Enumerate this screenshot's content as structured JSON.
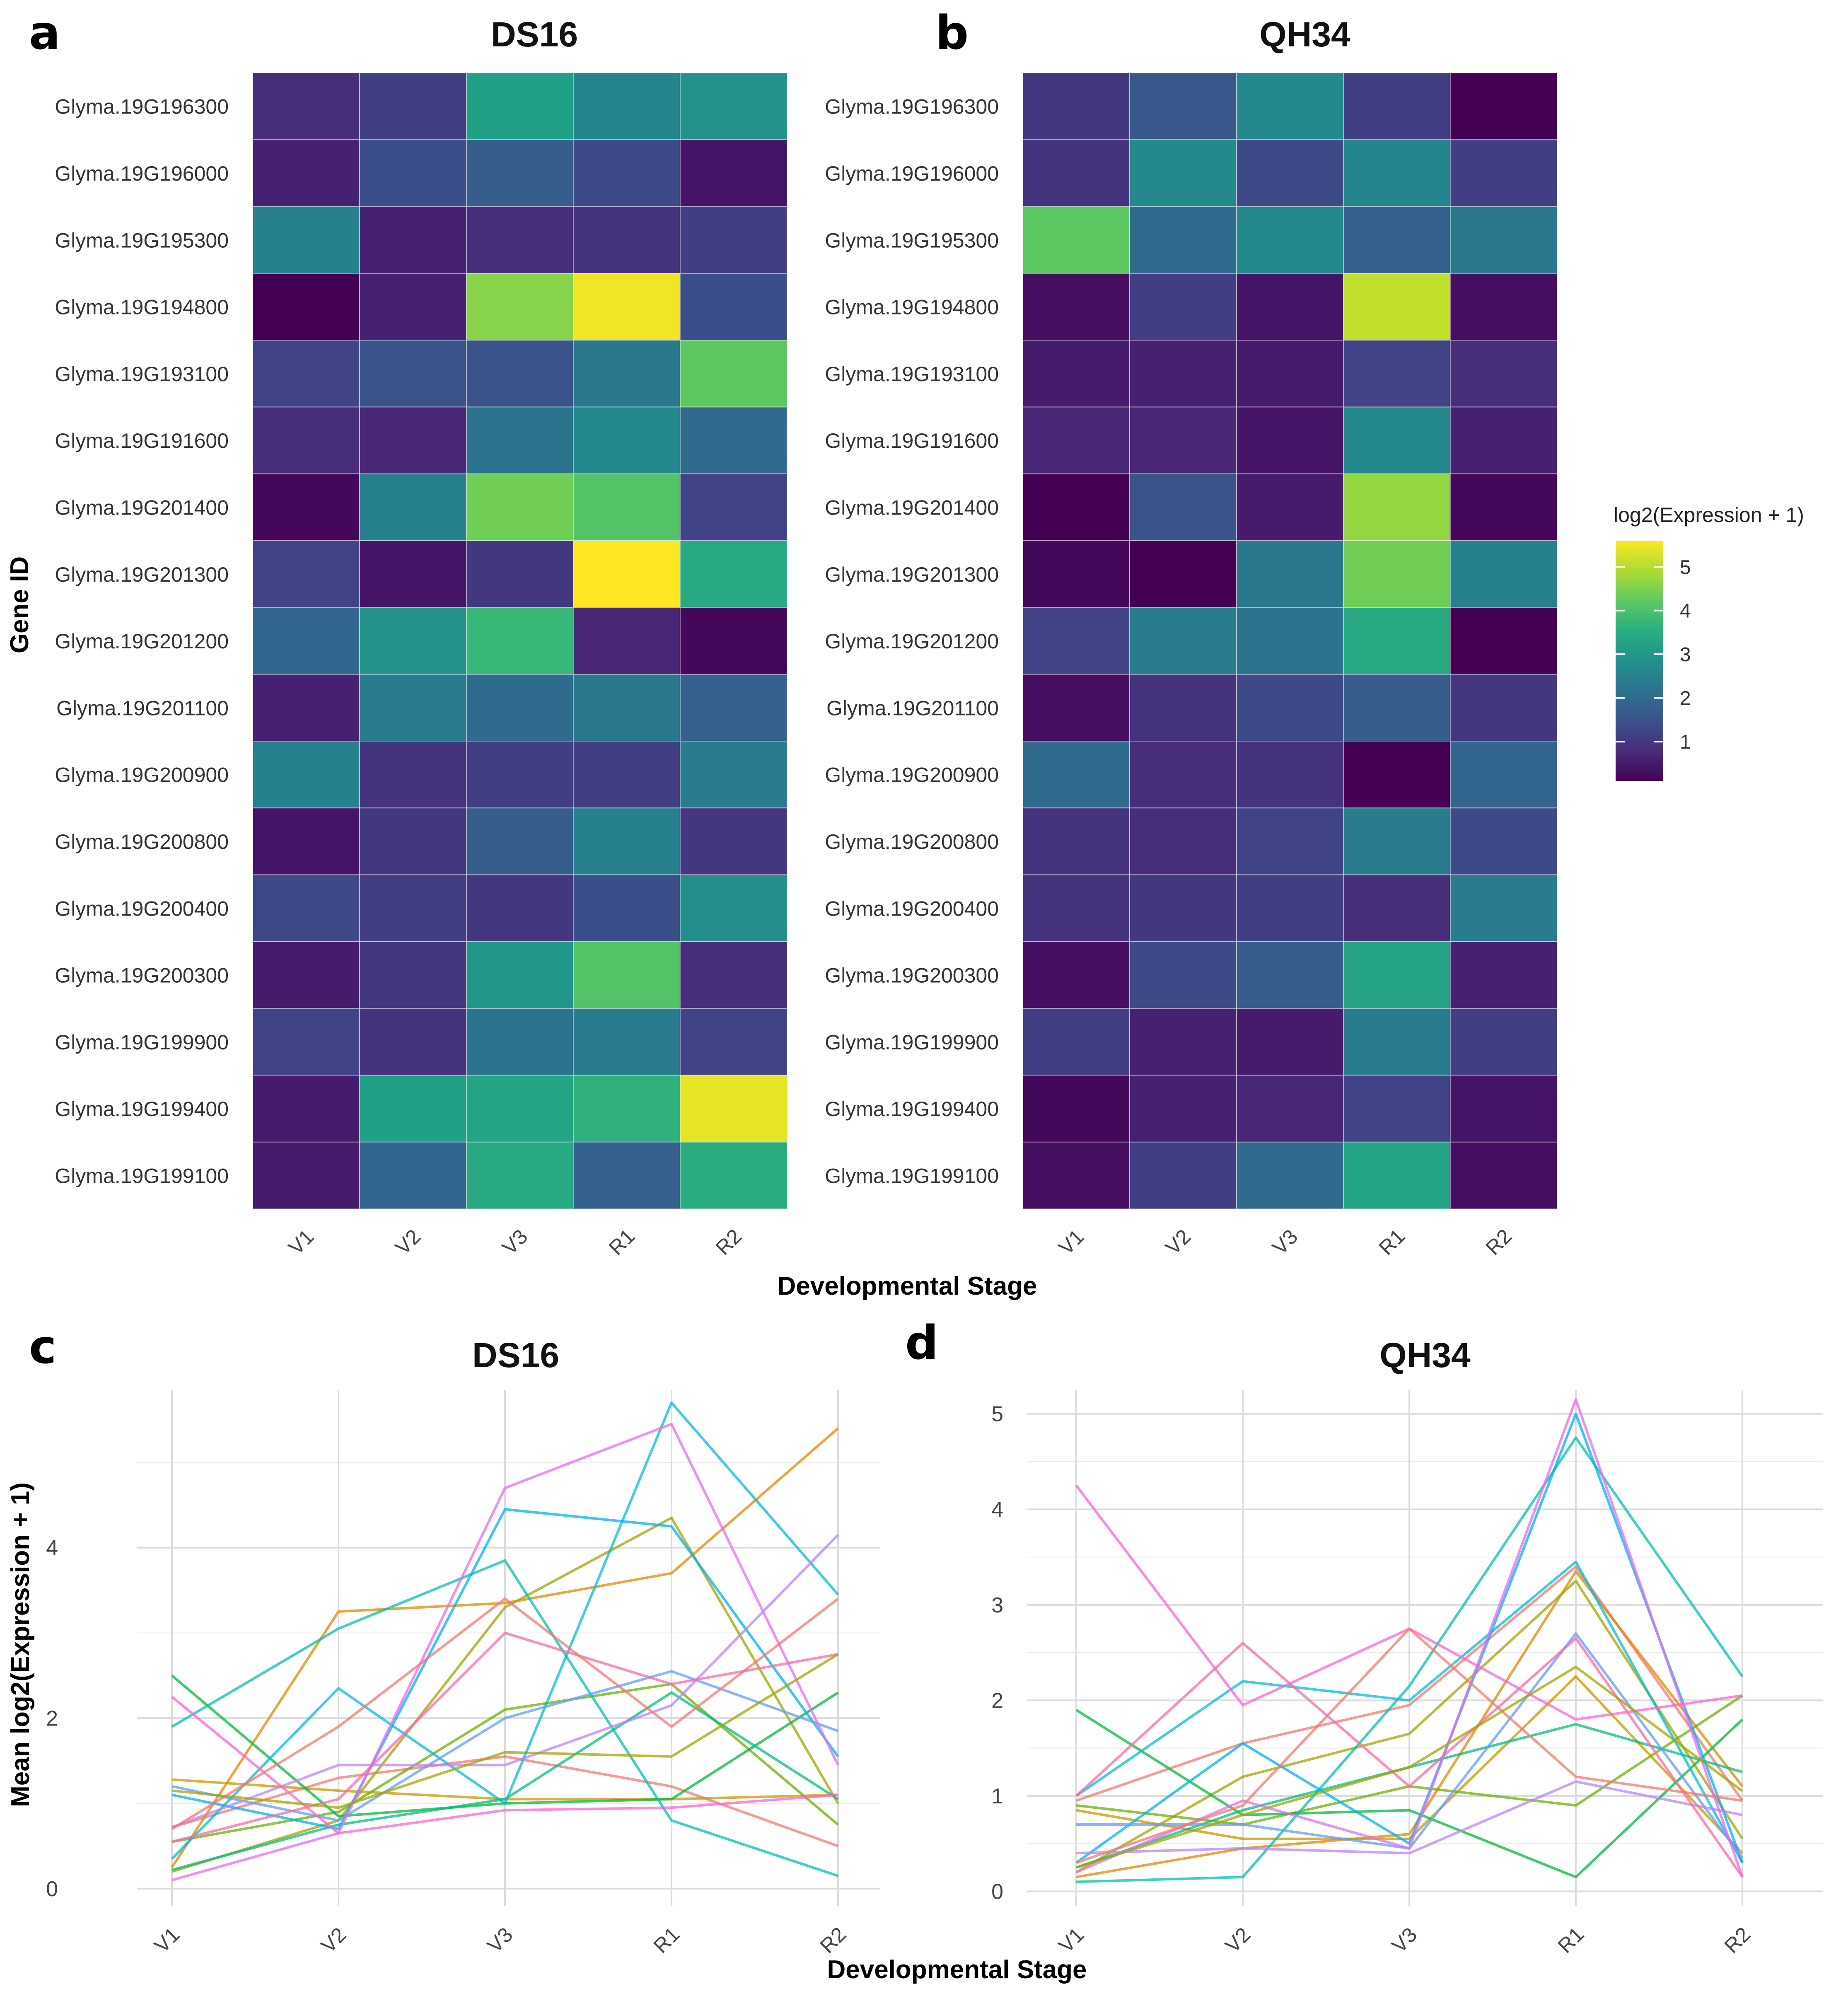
{
  "figure": {
    "panel_letters": [
      "a",
      "b",
      "c",
      "d"
    ],
    "legend_title": "log2(Expression + 1)",
    "legend_ticks": [
      1,
      2,
      3,
      4,
      5
    ]
  },
  "chart_data": [
    {
      "id": "a",
      "type": "heatmap",
      "title": "DS16",
      "xlabel": "",
      "ylabel": "Gene ID",
      "x_categories": [
        "V1",
        "V2",
        "V3",
        "R1",
        "R2"
      ],
      "y_categories": [
        "Glyma.19G196300",
        "Glyma.19G196000",
        "Glyma.19G195300",
        "Glyma.19G194800",
        "Glyma.19G193100",
        "Glyma.19G191600",
        "Glyma.19G201400",
        "Glyma.19G201300",
        "Glyma.19G201200",
        "Glyma.19G201100",
        "Glyma.19G200900",
        "Glyma.19G200800",
        "Glyma.19G200400",
        "Glyma.19G200300",
        "Glyma.19G199900",
        "Glyma.19G199400",
        "Glyma.19G199100"
      ],
      "color_scale": {
        "name": "viridis",
        "min": 0.1,
        "max": 5.6
      },
      "values": [
        [
          0.8,
          1.1,
          3.2,
          2.6,
          2.9
        ],
        [
          0.6,
          1.4,
          1.7,
          1.3,
          0.4
        ],
        [
          2.5,
          0.6,
          0.8,
          0.9,
          1.1
        ],
        [
          0.1,
          0.6,
          4.6,
          5.5,
          1.4
        ],
        [
          1.2,
          1.5,
          1.5,
          2.3,
          4.2
        ],
        [
          0.8,
          0.7,
          2.2,
          2.7,
          2.0
        ],
        [
          0.2,
          2.5,
          4.4,
          4.1,
          1.2
        ],
        [
          1.2,
          0.4,
          1.0,
          5.6,
          3.4
        ],
        [
          1.9,
          2.9,
          3.8,
          0.7,
          0.2
        ],
        [
          0.6,
          2.4,
          2.0,
          2.3,
          1.8
        ],
        [
          2.5,
          0.9,
          1.1,
          1.1,
          2.4
        ],
        [
          0.4,
          1.0,
          1.7,
          2.5,
          1.0
        ],
        [
          1.3,
          1.1,
          1.0,
          1.4,
          2.8
        ],
        [
          0.5,
          1.0,
          3.0,
          4.1,
          0.8
        ],
        [
          1.2,
          0.9,
          2.2,
          2.4,
          1.2
        ],
        [
          0.5,
          3.2,
          3.3,
          3.6,
          5.4
        ],
        [
          0.5,
          1.9,
          3.4,
          1.8,
          3.5
        ]
      ]
    },
    {
      "id": "b",
      "type": "heatmap",
      "title": "QH34",
      "xlabel": "Developmental Stage",
      "ylabel": "",
      "x_categories": [
        "V1",
        "V2",
        "V3",
        "R1",
        "R2"
      ],
      "y_categories": [
        "Glyma.19G196300",
        "Glyma.19G196000",
        "Glyma.19G195300",
        "Glyma.19G194800",
        "Glyma.19G193100",
        "Glyma.19G191600",
        "Glyma.19G201400",
        "Glyma.19G201300",
        "Glyma.19G201200",
        "Glyma.19G201100",
        "Glyma.19G200900",
        "Glyma.19G200800",
        "Glyma.19G200400",
        "Glyma.19G200300",
        "Glyma.19G199900",
        "Glyma.19G199400",
        "Glyma.19G199100"
      ],
      "color_scale": {
        "name": "viridis",
        "min": 0.1,
        "max": 5.6
      },
      "values": [
        [
          1.0,
          1.6,
          2.7,
          1.1,
          0.1
        ],
        [
          0.9,
          2.7,
          1.3,
          2.6,
          1.1
        ],
        [
          4.2,
          2.0,
          2.7,
          1.8,
          2.3
        ],
        [
          0.3,
          1.1,
          0.4,
          5.1,
          0.3
        ],
        [
          0.5,
          0.6,
          0.5,
          1.2,
          0.8
        ],
        [
          0.7,
          0.7,
          0.4,
          2.7,
          0.6
        ],
        [
          0.1,
          1.5,
          0.5,
          4.7,
          0.2
        ],
        [
          0.2,
          0.1,
          2.3,
          4.4,
          2.5
        ],
        [
          1.2,
          2.4,
          2.2,
          3.4,
          0.1
        ],
        [
          0.3,
          0.9,
          1.3,
          1.7,
          1.0
        ],
        [
          2.0,
          0.8,
          0.9,
          0.1,
          1.9
        ],
        [
          0.9,
          0.8,
          1.2,
          2.4,
          1.3
        ],
        [
          0.9,
          1.0,
          1.1,
          0.8,
          2.4
        ],
        [
          0.3,
          1.3,
          1.7,
          3.3,
          0.6
        ],
        [
          1.1,
          0.6,
          0.5,
          2.4,
          1.1
        ],
        [
          0.2,
          0.6,
          0.7,
          1.2,
          0.4
        ],
        [
          0.3,
          1.1,
          2.0,
          3.3,
          0.3
        ]
      ]
    },
    {
      "id": "c",
      "type": "line",
      "title": "DS16",
      "xlabel": "Developmental Stage",
      "ylabel": "Mean log2(Expression + 1)",
      "x": [
        "V1",
        "V2",
        "V3",
        "R1",
        "R2"
      ],
      "ylim": [
        -0.2,
        5.85
      ],
      "yticks": [
        0,
        2,
        4
      ],
      "grid": true,
      "series": [
        {
          "name": "Glyma.19G196300",
          "color": "#F8766D",
          "values": [
            0.72,
            1.3,
            1.55,
            1.2,
            0.5
          ]
        },
        {
          "name": "Glyma.19G196000",
          "color": "#E58700",
          "values": [
            0.25,
            3.25,
            3.35,
            3.7,
            5.4
          ]
        },
        {
          "name": "Glyma.19G195300",
          "color": "#C99800",
          "values": [
            1.28,
            1.15,
            1.05,
            1.05,
            1.1
          ]
        },
        {
          "name": "Glyma.19G194800",
          "color": "#A3A500",
          "values": [
            0.2,
            0.8,
            3.3,
            4.35,
            1.0
          ]
        },
        {
          "name": "Glyma.19G193100",
          "color": "#6BB100",
          "values": [
            0.55,
            0.9,
            2.1,
            2.4,
            0.75
          ]
        },
        {
          "name": "Glyma.19G191600",
          "color": "#00BA38",
          "values": [
            2.5,
            0.85,
            1.0,
            1.05,
            2.3
          ]
        },
        {
          "name": "Glyma.19G201400",
          "color": "#00BF7D",
          "values": [
            0.22,
            0.75,
            1.05,
            2.3,
            1.05
          ]
        },
        {
          "name": "Glyma.19G201300",
          "color": "#00C0AF",
          "values": [
            1.9,
            3.05,
            3.85,
            0.8,
            0.15
          ]
        },
        {
          "name": "Glyma.19G201200",
          "color": "#00BCD8",
          "values": [
            0.35,
            2.35,
            1.0,
            5.7,
            3.45
          ]
        },
        {
          "name": "Glyma.19G201100",
          "color": "#00B0F6",
          "values": [
            1.1,
            0.7,
            4.45,
            4.25,
            1.55
          ]
        },
        {
          "name": "Glyma.19G200900",
          "color": "#619CFF",
          "values": [
            1.2,
            0.8,
            2.0,
            2.55,
            1.85
          ]
        },
        {
          "name": "Glyma.19G200800",
          "color": "#B983FF",
          "values": [
            0.72,
            1.45,
            1.45,
            2.15,
            4.15
          ]
        },
        {
          "name": "Glyma.19G200400",
          "color": "#E76BF3",
          "values": [
            0.1,
            0.65,
            4.7,
            5.45,
            1.45
          ]
        },
        {
          "name": "Glyma.19G200300",
          "color": "#FD61D1",
          "values": [
            2.25,
            0.65,
            0.92,
            0.95,
            1.1
          ]
        },
        {
          "name": "Glyma.19G199900",
          "color": "#FF67A4",
          "values": [
            0.55,
            1.05,
            3.0,
            2.4,
            2.75
          ]
        },
        {
          "name": "Glyma.19G199400",
          "color": "#F8766D",
          "values": [
            0.7,
            1.9,
            3.4,
            1.9,
            3.4
          ]
        },
        {
          "name": "Glyma.19G199100",
          "color": "#A3A500",
          "values": [
            1.15,
            0.95,
            1.6,
            1.55,
            2.75
          ]
        }
      ]
    },
    {
      "id": "d",
      "type": "line",
      "title": "QH34",
      "xlabel": "",
      "ylabel": "",
      "x": [
        "V1",
        "V2",
        "V3",
        "R1",
        "R2"
      ],
      "ylim": [
        -0.15,
        5.25
      ],
      "yticks": [
        0,
        1,
        2,
        3,
        4,
        5
      ],
      "grid": true,
      "series": [
        {
          "name": "Glyma.19G196300",
          "color": "#F8766D",
          "values": [
            0.95,
            1.55,
            1.95,
            3.4,
            0.95
          ]
        },
        {
          "name": "Glyma.19G196000",
          "color": "#E58700",
          "values": [
            0.15,
            0.45,
            0.6,
            3.35,
            1.1
          ]
        },
        {
          "name": "Glyma.19G195300",
          "color": "#C99800",
          "values": [
            0.85,
            0.55,
            0.55,
            2.25,
            0.4
          ]
        },
        {
          "name": "Glyma.19G194800",
          "color": "#A3A500",
          "values": [
            0.2,
            1.2,
            1.65,
            3.25,
            0.55
          ]
        },
        {
          "name": "Glyma.19G193100",
          "color": "#6BB100",
          "values": [
            0.9,
            0.7,
            1.1,
            0.9,
            2.05
          ]
        },
        {
          "name": "Glyma.19G191600",
          "color": "#00BA38",
          "values": [
            1.9,
            0.8,
            0.85,
            0.15,
            1.8
          ]
        },
        {
          "name": "Glyma.19G201400",
          "color": "#00BF7D",
          "values": [
            0.25,
            0.85,
            1.3,
            1.75,
            1.25
          ]
        },
        {
          "name": "Glyma.19G201300",
          "color": "#00C0AF",
          "values": [
            0.1,
            0.15,
            2.15,
            4.75,
            2.25
          ]
        },
        {
          "name": "Glyma.19G201200",
          "color": "#00BCD8",
          "values": [
            1.0,
            2.2,
            2.0,
            3.45,
            0.3
          ]
        },
        {
          "name": "Glyma.19G201100",
          "color": "#00B0F6",
          "values": [
            0.3,
            1.55,
            0.5,
            5.0,
            0.3
          ]
        },
        {
          "name": "Glyma.19G200900",
          "color": "#619CFF",
          "values": [
            0.7,
            0.7,
            0.45,
            2.7,
            0.35
          ]
        },
        {
          "name": "Glyma.19G200800",
          "color": "#B983FF",
          "values": [
            0.4,
            0.45,
            0.4,
            1.15,
            0.8
          ]
        },
        {
          "name": "Glyma.19G200400",
          "color": "#E76BF3",
          "values": [
            0.2,
            0.95,
            0.45,
            5.15,
            0.15
          ]
        },
        {
          "name": "Glyma.19G200300",
          "color": "#FD61D1",
          "values": [
            4.25,
            1.95,
            2.75,
            1.8,
            2.05
          ]
        },
        {
          "name": "Glyma.19G199900",
          "color": "#FF67A4",
          "values": [
            1.0,
            2.6,
            1.1,
            2.65,
            0.15
          ]
        },
        {
          "name": "Glyma.19G199400",
          "color": "#F8766D",
          "values": [
            0.3,
            0.9,
            2.75,
            1.2,
            0.95
          ]
        },
        {
          "name": "Glyma.19G199100",
          "color": "#A3A500",
          "values": [
            0.25,
            0.8,
            1.3,
            2.35,
            1.05
          ]
        }
      ]
    }
  ]
}
